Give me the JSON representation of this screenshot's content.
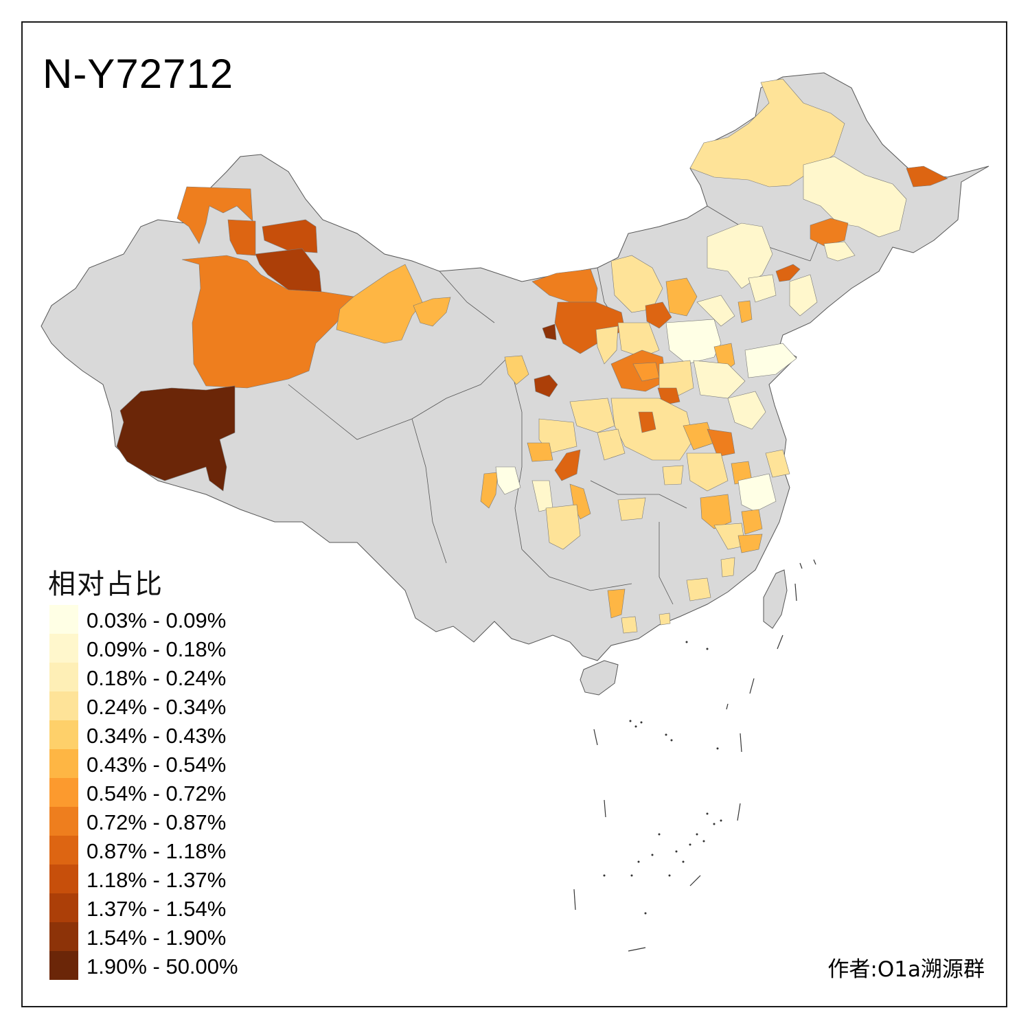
{
  "title": "N-Y72712",
  "legend": {
    "title": "相对占比",
    "items": [
      {
        "label": "0.03% - 0.09%",
        "color": "#FFFFE5"
      },
      {
        "label": "0.09% - 0.18%",
        "color": "#FFF7CC"
      },
      {
        "label": "0.18% - 0.24%",
        "color": "#FEEFB6"
      },
      {
        "label": "0.24% - 0.34%",
        "color": "#FEE398"
      },
      {
        "label": "0.34% - 0.43%",
        "color": "#FED06A"
      },
      {
        "label": "0.43% - 0.54%",
        "color": "#FEB644"
      },
      {
        "label": "0.54% - 0.72%",
        "color": "#FC9A2E"
      },
      {
        "label": "0.72% - 0.87%",
        "color": "#EE7E1E"
      },
      {
        "label": "0.87% - 1.18%",
        "color": "#DD6512"
      },
      {
        "label": "1.18% - 1.37%",
        "color": "#C74F0B"
      },
      {
        "label": "1.37% - 1.54%",
        "color": "#AC3F08"
      },
      {
        "label": "1.54% - 1.90%",
        "color": "#8D3308"
      },
      {
        "label": "1.90% - 50.00%",
        "color": "#6B2608"
      }
    ]
  },
  "author": "作者:O1a溯源群",
  "map": {
    "no_data_color": "#D9D9D9",
    "border_color": "#555555"
  }
}
